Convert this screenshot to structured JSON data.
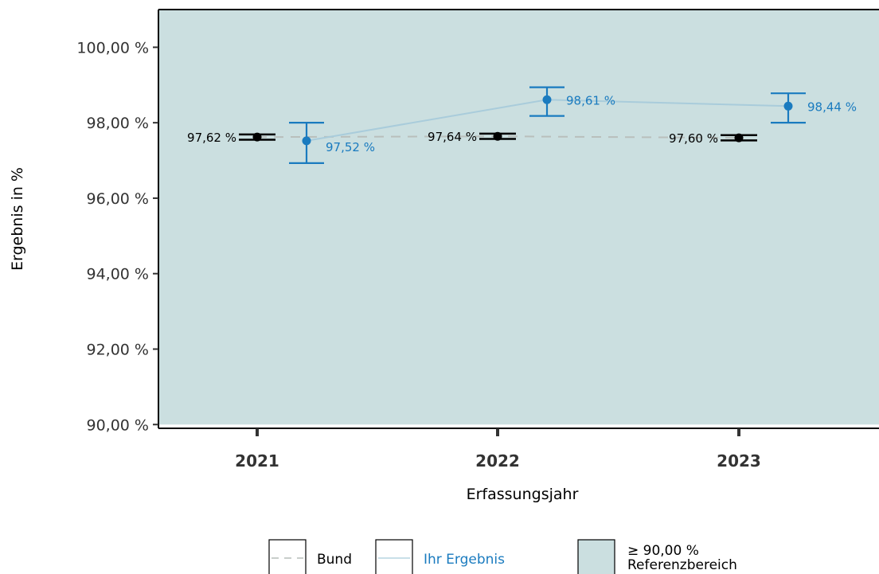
{
  "chart_data": {
    "type": "line",
    "x_label": "Erfassungsjahr",
    "y_label": "Ergebnis in %",
    "categories": [
      "2021",
      "2022",
      "2023"
    ],
    "y_ticks": [
      "90,00 %",
      "92,00 %",
      "94,00 %",
      "96,00 %",
      "98,00 %",
      "100,00 %"
    ],
    "y_tick_values": [
      90,
      92,
      94,
      96,
      98,
      100
    ],
    "ylim": [
      89.9,
      101.0
    ],
    "reference_area": {
      "min": 90,
      "max": 101.0,
      "color": "#cbdfe0"
    },
    "series": [
      {
        "name": "Bund",
        "color": "#000000",
        "line_color": "#b9bfbc",
        "line_style": "dashed",
        "values": [
          97.62,
          97.64,
          97.6
        ],
        "ci_low": [
          97.55,
          97.57,
          97.53
        ],
        "ci_high": [
          97.69,
          97.71,
          97.67
        ],
        "labels": [
          "97,62 %",
          "97,64 %",
          "97,60 %"
        ]
      },
      {
        "name": "Ihr Ergebnis",
        "color": "#1a7bbf",
        "line_color": "#a9ccdb",
        "line_style": "solid",
        "values": [
          97.52,
          98.61,
          98.44
        ],
        "ci_low": [
          96.93,
          98.18,
          98.0
        ],
        "ci_high": [
          98.0,
          98.94,
          98.78
        ],
        "labels": [
          "97,52 %",
          "98,61 %",
          "98,44 %"
        ]
      }
    ],
    "legend": {
      "position": "bottom",
      "items": [
        {
          "key": "bund",
          "label": "Bund",
          "color": "#000000"
        },
        {
          "key": "ihr",
          "label": "Ihr Ergebnis",
          "color": "#1a7bbf"
        },
        {
          "key": "ref",
          "label_line1": "≥ 90,00 %",
          "label_line2": "Referenzbereich",
          "color": "#000000"
        }
      ]
    }
  }
}
